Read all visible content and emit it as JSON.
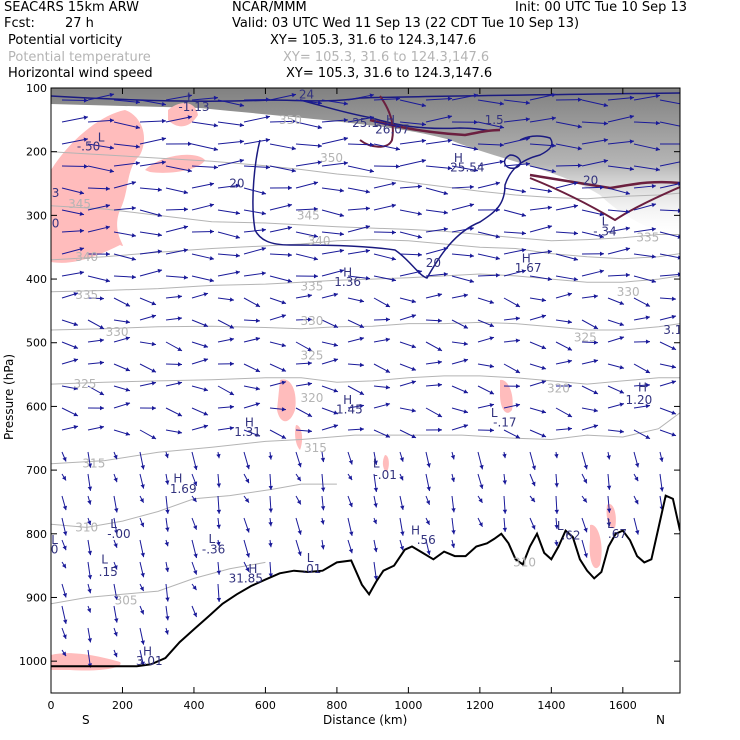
{
  "header": {
    "model": "SEAC4RS 15km ARW",
    "center": "NCAR/MMM",
    "init": "Init: 00 UTC Tue 10 Sep 13",
    "fcst_label": "Fcst:",
    "fcst_value": "27 h",
    "valid": "Valid: 03 UTC Wed 11 Sep 13 (22 CDT Tue 10 Sep 13)",
    "fields": [
      {
        "name": "Potential vorticity",
        "xy": "XY= 105.3, 31.6 to 124.3,147.6",
        "color": "#000000"
      },
      {
        "name": "Potential temperature",
        "xy": "XY= 105.3, 31.6 to 124.3,147.6",
        "color": "#b4b4b4"
      },
      {
        "name": "Horizontal wind speed",
        "xy": "XY= 105.3, 31.6 to 124.3,147.6",
        "color": "#000000"
      }
    ]
  },
  "chart_data": {
    "type": "cross-section",
    "ylabel": "Pressure (hPa)",
    "xlabel": "Distance (km)",
    "x_ticks": [
      0,
      200,
      400,
      600,
      800,
      1000,
      1200,
      1400,
      1600
    ],
    "y_ticks": [
      100,
      200,
      300,
      400,
      500,
      600,
      700,
      800,
      900,
      1000
    ],
    "xlim": [
      0,
      1760
    ],
    "ylim": [
      1050,
      100
    ],
    "end_labels": {
      "left": "S",
      "right": "N"
    },
    "theta_contours": [
      {
        "level": "305",
        "points": [
          [
            0,
            910
          ],
          [
            100,
            900
          ],
          [
            200,
            895
          ],
          [
            300,
            890
          ],
          [
            400,
            870
          ],
          [
            500,
            855
          ],
          [
            600,
            845
          ]
        ]
      },
      {
        "level": "310",
        "points": [
          [
            0,
            785
          ],
          [
            100,
            790
          ],
          [
            200,
            780
          ],
          [
            300,
            765
          ],
          [
            400,
            745
          ],
          [
            500,
            740
          ],
          [
            620,
            730
          ],
          [
            700,
            722
          ],
          [
            800,
            722
          ]
        ]
      },
      {
        "level": "315",
        "points": [
          [
            0,
            690
          ],
          [
            150,
            685
          ],
          [
            300,
            672
          ],
          [
            450,
            664
          ],
          [
            600,
            655
          ],
          [
            700,
            652
          ],
          [
            850,
            645
          ],
          [
            1000,
            645
          ],
          [
            1150,
            645
          ],
          [
            1300,
            650
          ],
          [
            1400,
            652
          ],
          [
            1500,
            645
          ],
          [
            1600,
            648
          ],
          [
            1700,
            635
          ],
          [
            1760,
            610
          ]
        ]
      },
      {
        "level": "325",
        "points": [
          [
            0,
            565
          ],
          [
            150,
            562
          ],
          [
            300,
            560
          ],
          [
            450,
            558
          ],
          [
            600,
            555
          ],
          [
            700,
            555
          ],
          [
            800,
            562
          ],
          [
            900,
            560
          ],
          [
            1000,
            555
          ],
          [
            1100,
            552
          ],
          [
            1200,
            552
          ],
          [
            1300,
            555
          ],
          [
            1400,
            560
          ],
          [
            1500,
            565
          ],
          [
            1600,
            560
          ],
          [
            1700,
            555
          ],
          [
            1760,
            555
          ]
        ]
      },
      {
        "level": "330",
        "points": [
          [
            0,
            480
          ],
          [
            150,
            478
          ],
          [
            300,
            475
          ],
          [
            450,
            474
          ],
          [
            600,
            476
          ],
          [
            700,
            478
          ],
          [
            800,
            475
          ],
          [
            900,
            474
          ],
          [
            1000,
            470
          ],
          [
            1100,
            470
          ],
          [
            1200,
            468
          ],
          [
            1300,
            470
          ],
          [
            1400,
            475
          ],
          [
            1500,
            480
          ],
          [
            1600,
            480
          ],
          [
            1700,
            475
          ],
          [
            1760,
            470
          ]
        ]
      },
      {
        "level": "335",
        "points": [
          [
            0,
            420
          ],
          [
            150,
            418
          ],
          [
            300,
            415
          ],
          [
            450,
            410
          ],
          [
            600,
            408
          ],
          [
            700,
            405
          ],
          [
            800,
            402
          ],
          [
            900,
            400
          ],
          [
            1000,
            398
          ],
          [
            1100,
            395
          ],
          [
            1200,
            392
          ],
          [
            1300,
            395
          ],
          [
            1400,
            400
          ],
          [
            1500,
            405
          ],
          [
            1600,
            405
          ],
          [
            1700,
            400
          ],
          [
            1760,
            395
          ]
        ]
      },
      {
        "level": "340",
        "points": [
          [
            0,
            370
          ],
          [
            150,
            365
          ],
          [
            300,
            358
          ],
          [
            450,
            352
          ],
          [
            600,
            348
          ],
          [
            700,
            345
          ],
          [
            800,
            340
          ],
          [
            900,
            338
          ],
          [
            1000,
            340
          ],
          [
            1100,
            345
          ],
          [
            1200,
            350
          ],
          [
            1300,
            352
          ],
          [
            1400,
            360
          ],
          [
            1500,
            365
          ],
          [
            1600,
            368
          ],
          [
            1700,
            365
          ],
          [
            1760,
            360
          ]
        ]
      },
      {
        "level": "345",
        "points": [
          [
            0,
            285
          ],
          [
            150,
            290
          ],
          [
            300,
            300
          ],
          [
            450,
            310
          ],
          [
            600,
            312
          ],
          [
            700,
            315
          ],
          [
            800,
            318
          ],
          [
            900,
            320
          ],
          [
            1000,
            322
          ],
          [
            1100,
            325
          ],
          [
            1200,
            330
          ],
          [
            1300,
            335
          ],
          [
            1400,
            340
          ],
          [
            1500,
            338
          ],
          [
            1600,
            335
          ],
          [
            1700,
            330
          ],
          [
            1760,
            330
          ]
        ]
      },
      {
        "level": "350",
        "points": [
          [
            0,
            200
          ],
          [
            150,
            205
          ],
          [
            300,
            210
          ],
          [
            450,
            215
          ],
          [
            600,
            222
          ],
          [
            700,
            228
          ],
          [
            800,
            235
          ],
          [
            900,
            240
          ],
          [
            1000,
            248
          ],
          [
            1100,
            255
          ],
          [
            1200,
            262
          ],
          [
            1300,
            268
          ],
          [
            1400,
            272
          ],
          [
            1500,
            274
          ],
          [
            1600,
            270
          ],
          [
            1700,
            268
          ],
          [
            1760,
            265
          ]
        ]
      }
    ],
    "labels": [
      {
        "text": "L",
        "x": 140,
        "y": 178,
        "color": "#33337f"
      },
      {
        "text": "-.50",
        "x": 105,
        "y": 192,
        "color": "#33337f"
      },
      {
        "text": "53",
        "x": 2,
        "y": 265,
        "color": "#33337f"
      },
      {
        "text": "30",
        "x": 2,
        "y": 313,
        "color": "#33337f"
      },
      {
        "text": "L",
        "x": 390,
        "y": 115,
        "color": "#33337f"
      },
      {
        "text": "-1.13",
        "x": 400,
        "y": 130,
        "color": "#33337f"
      },
      {
        "text": "24",
        "x": 715,
        "y": 110,
        "color": "#33337f"
      },
      {
        "text": "25.1",
        "x": 880,
        "y": 155,
        "color": "#33337f"
      },
      {
        "text": "H",
        "x": 950,
        "y": 150,
        "color": "#33337f"
      },
      {
        "text": "26.07",
        "x": 955,
        "y": 165,
        "color": "#33337f"
      },
      {
        "text": "1.5",
        "x": 1240,
        "y": 150,
        "color": "#33337f"
      },
      {
        "text": "H",
        "x": 1140,
        "y": 210,
        "color": "#33337f"
      },
      {
        "text": "25.54",
        "x": 1165,
        "y": 225,
        "color": "#33337f"
      },
      {
        "text": "20",
        "x": 520,
        "y": 250,
        "color": "#33337f"
      },
      {
        "text": "20",
        "x": 1510,
        "y": 245,
        "color": "#33337f"
      },
      {
        "text": "20",
        "x": 1070,
        "y": 375,
        "color": "#33337f"
      },
      {
        "text": "L",
        "x": 1550,
        "y": 310,
        "color": "#33337f"
      },
      {
        "text": "-.34",
        "x": 1550,
        "y": 325,
        "color": "#33337f"
      },
      {
        "text": "H",
        "x": 830,
        "y": 390,
        "color": "#33337f"
      },
      {
        "text": "1.36",
        "x": 830,
        "y": 405,
        "color": "#33337f"
      },
      {
        "text": "H",
        "x": 1330,
        "y": 368,
        "color": "#33337f"
      },
      {
        "text": "1.67",
        "x": 1335,
        "y": 383,
        "color": "#33337f"
      },
      {
        "text": "3.1",
        "x": 1740,
        "y": 480,
        "color": "#33337f"
      },
      {
        "text": "H",
        "x": 1655,
        "y": 570,
        "color": "#33337f"
      },
      {
        "text": "1.20",
        "x": 1645,
        "y": 590,
        "color": "#33337f"
      },
      {
        "text": "H",
        "x": 830,
        "y": 590,
        "color": "#33337f"
      },
      {
        "text": "1.45",
        "x": 835,
        "y": 605,
        "color": "#33337f"
      },
      {
        "text": "H",
        "x": 555,
        "y": 625,
        "color": "#33337f"
      },
      {
        "text": "1.31",
        "x": 550,
        "y": 640,
        "color": "#33337f"
      },
      {
        "text": "L",
        "x": 1240,
        "y": 610,
        "color": "#33337f"
      },
      {
        "text": "-.17",
        "x": 1270,
        "y": 625,
        "color": "#33337f"
      },
      {
        "text": "L",
        "x": 910,
        "y": 690,
        "color": "#33337f"
      },
      {
        "text": "-.01",
        "x": 935,
        "y": 708,
        "color": "#33337f"
      },
      {
        "text": "H",
        "x": 355,
        "y": 713,
        "color": "#33337f"
      },
      {
        "text": "1.69",
        "x": 370,
        "y": 730,
        "color": "#33337f"
      },
      {
        "text": "L",
        "x": 175,
        "y": 785,
        "color": "#33337f"
      },
      {
        "text": "-.00",
        "x": 190,
        "y": 800,
        "color": "#33337f"
      },
      {
        "text": "L",
        "x": 450,
        "y": 808,
        "color": "#33337f"
      },
      {
        "text": "-.36",
        "x": 455,
        "y": 825,
        "color": "#33337f"
      },
      {
        "text": "H",
        "x": 1020,
        "y": 795,
        "color": "#33337f"
      },
      {
        "text": ".56",
        "x": 1050,
        "y": 810,
        "color": "#33337f"
      },
      {
        "text": "L",
        "x": 1425,
        "y": 788,
        "color": "#33337f"
      },
      {
        "text": ".62",
        "x": 1455,
        "y": 803,
        "color": "#33337f"
      },
      {
        "text": "L",
        "x": 1565,
        "y": 785,
        "color": "#33337f"
      },
      {
        "text": ".67",
        "x": 1585,
        "y": 800,
        "color": "#33337f"
      },
      {
        "text": "L",
        "x": 10,
        "y": 810,
        "color": "#33337f"
      },
      {
        "text": "0",
        "x": 10,
        "y": 825,
        "color": "#33337f"
      },
      {
        "text": "L",
        "x": 150,
        "y": 840,
        "color": "#33337f"
      },
      {
        "text": ".15",
        "x": 160,
        "y": 860,
        "color": "#33337f"
      },
      {
        "text": "H",
        "x": 565,
        "y": 855,
        "color": "#33337f"
      },
      {
        "text": "31.85",
        "x": 545,
        "y": 870,
        "color": "#33337f"
      },
      {
        "text": "L",
        "x": 725,
        "y": 838,
        "color": "#33337f"
      },
      {
        "text": ".01",
        "x": 730,
        "y": 855,
        "color": "#33337f"
      },
      {
        "text": "H",
        "x": 270,
        "y": 985,
        "color": "#33337f"
      },
      {
        "text": "3.01",
        "x": 275,
        "y": 1000,
        "color": "#33337f"
      },
      {
        "text": "310",
        "x": 1325,
        "y": 845,
        "color": "#b4b4b4"
      }
    ],
    "theta_labels": [
      {
        "text": "305",
        "x": 210,
        "y": 905
      },
      {
        "text": "310",
        "x": 100,
        "y": 790
      },
      {
        "text": "315",
        "x": 120,
        "y": 690
      },
      {
        "text": "315",
        "x": 740,
        "y": 665
      },
      {
        "text": "320",
        "x": 730,
        "y": 587
      },
      {
        "text": "320",
        "x": 1420,
        "y": 572
      },
      {
        "text": "325",
        "x": 95,
        "y": 565
      },
      {
        "text": "325",
        "x": 730,
        "y": 520
      },
      {
        "text": "325",
        "x": 1495,
        "y": 492
      },
      {
        "text": "330",
        "x": 185,
        "y": 483
      },
      {
        "text": "330",
        "x": 730,
        "y": 466
      },
      {
        "text": "330",
        "x": 1615,
        "y": 420
      },
      {
        "text": "335",
        "x": 100,
        "y": 425
      },
      {
        "text": "335",
        "x": 730,
        "y": 412
      },
      {
        "text": "335",
        "x": 1670,
        "y": 335
      },
      {
        "text": "340",
        "x": 100,
        "y": 365
      },
      {
        "text": "340",
        "x": 750,
        "y": 340
      },
      {
        "text": "345",
        "x": 80,
        "y": 282
      },
      {
        "text": "345",
        "x": 720,
        "y": 300
      },
      {
        "text": "350",
        "x": 785,
        "y": 210
      },
      {
        "text": "350",
        "x": 670,
        "y": 150
      }
    ],
    "grid": false
  }
}
